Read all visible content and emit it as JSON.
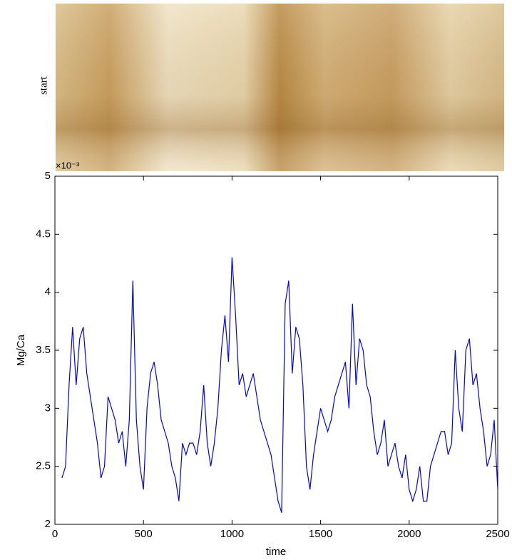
{
  "chart_data": {
    "type": "line",
    "image_label": "start",
    "y_multiplier": "×10⁻³",
    "xlabel": "time",
    "ylabel": "Mg/Ca",
    "x": [
      40,
      60,
      80,
      100,
      120,
      140,
      160,
      180,
      200,
      220,
      240,
      260,
      280,
      300,
      320,
      340,
      360,
      380,
      400,
      420,
      440,
      460,
      480,
      500,
      520,
      540,
      560,
      580,
      600,
      620,
      640,
      660,
      680,
      700,
      720,
      740,
      760,
      780,
      800,
      820,
      840,
      860,
      880,
      900,
      920,
      940,
      960,
      980,
      1000,
      1020,
      1040,
      1060,
      1080,
      1100,
      1120,
      1140,
      1160,
      1180,
      1200,
      1220,
      1240,
      1260,
      1280,
      1300,
      1320,
      1340,
      1360,
      1380,
      1400,
      1420,
      1440,
      1460,
      1480,
      1500,
      1520,
      1540,
      1560,
      1580,
      1600,
      1620,
      1640,
      1660,
      1680,
      1700,
      1720,
      1740,
      1760,
      1780,
      1800,
      1820,
      1840,
      1860,
      1880,
      1900,
      1920,
      1940,
      1960,
      1980,
      2000,
      2020,
      2040,
      2060,
      2080,
      2100,
      2120,
      2140,
      2160,
      2180,
      2200,
      2220,
      2240,
      2260,
      2280,
      2300,
      2320,
      2340,
      2360,
      2380,
      2400,
      2420,
      2440,
      2460,
      2480,
      2500
    ],
    "series": [
      {
        "color": "#0000ff",
        "values": [
          2.4,
          2.5,
          3.2,
          3.7,
          3.2,
          3.6,
          3.7,
          3.3,
          3.1,
          2.9,
          2.7,
          2.4,
          2.5,
          3.1,
          3.0,
          2.9,
          2.7,
          2.8,
          2.5,
          2.9,
          4.1,
          2.9,
          2.5,
          2.3,
          3.0,
          3.3,
          3.4,
          3.2,
          2.9,
          2.8,
          2.7,
          2.5,
          2.4,
          2.2,
          2.7,
          2.6,
          2.7,
          2.7,
          2.6,
          2.8,
          3.2,
          2.7,
          2.5,
          2.7,
          3.0,
          3.5,
          3.8,
          3.4,
          4.3,
          3.8,
          3.2,
          3.3,
          3.1,
          3.2,
          3.3,
          3.1,
          2.9,
          2.8,
          2.7,
          2.6,
          2.4,
          2.2,
          2.1,
          3.9,
          4.1,
          3.3,
          3.7,
          3.6,
          3.2,
          2.5,
          2.3,
          2.6,
          2.8,
          3.0,
          2.9,
          2.8,
          2.9,
          3.1,
          3.2,
          3.3,
          3.4,
          3.0,
          3.9,
          3.2,
          3.6,
          3.5,
          3.2,
          3.1,
          2.8,
          2.6,
          2.7,
          2.9,
          2.5,
          2.6,
          2.7,
          2.5,
          2.4,
          2.6,
          2.3,
          2.2,
          2.3,
          2.5,
          2.2,
          2.2,
          2.5,
          2.6,
          2.7,
          2.8,
          2.8,
          2.6,
          2.7,
          3.5,
          3.0,
          2.8,
          3.5,
          3.6,
          3.2,
          3.3,
          3.0,
          2.8,
          2.5,
          2.6,
          2.9,
          2.3
        ]
      }
    ],
    "xlim": [
      0,
      2500
    ],
    "xticks": [
      0,
      500,
      1000,
      1500,
      2000,
      2500
    ],
    "ylim": [
      2,
      5
    ],
    "yticks": [
      2,
      2.5,
      3,
      3.5,
      4,
      4.5,
      5
    ]
  }
}
